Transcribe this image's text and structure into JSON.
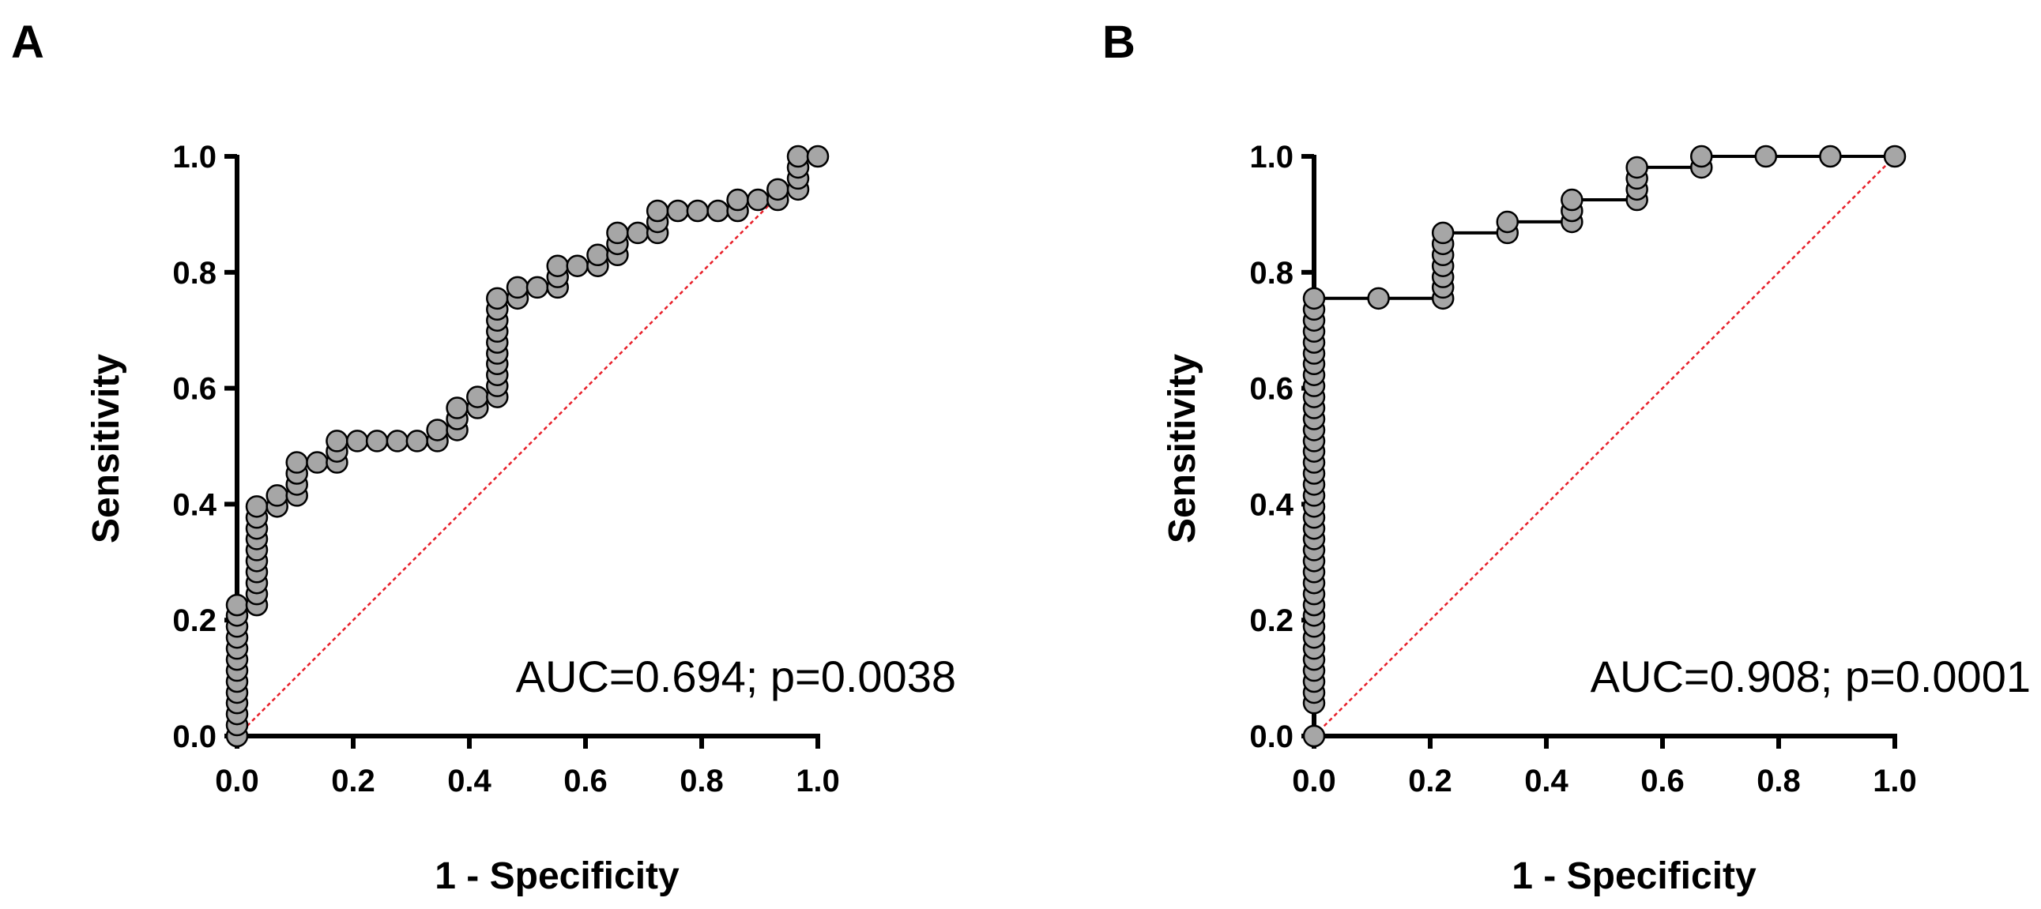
{
  "figure": {
    "background": "#ffffff",
    "marker_fill": "#a6a6a6",
    "marker_stroke": "#000000",
    "diagonal_color": "#e8202a"
  },
  "chart_data": [
    {
      "panel": "A",
      "type": "scatter",
      "title": "",
      "xlabel": "1 - Specificity",
      "ylabel": "Sensitivity",
      "xlim": [
        0,
        1
      ],
      "ylim": [
        0,
        1
      ],
      "xticks": [
        "0.0",
        "0.2",
        "0.4",
        "0.6",
        "0.8",
        "1.0"
      ],
      "yticks": [
        "0.0",
        "0.2",
        "0.4",
        "0.6",
        "0.8",
        "1.0"
      ],
      "annotation": "AUC=0.694; p=0.0038",
      "reference_line": true,
      "connect_points": false,
      "points": [
        [
          0,
          0
        ],
        [
          0,
          0.019
        ],
        [
          0,
          0.038
        ],
        [
          0,
          0.057
        ],
        [
          0,
          0.075
        ],
        [
          0,
          0.094
        ],
        [
          0,
          0.113
        ],
        [
          0,
          0.132
        ],
        [
          0,
          0.151
        ],
        [
          0,
          0.17
        ],
        [
          0,
          0.189
        ],
        [
          0,
          0.208
        ],
        [
          0,
          0.226
        ],
        [
          0.034,
          0.226
        ],
        [
          0.034,
          0.245
        ],
        [
          0.034,
          0.264
        ],
        [
          0.034,
          0.283
        ],
        [
          0.034,
          0.302
        ],
        [
          0.034,
          0.321
        ],
        [
          0.034,
          0.34
        ],
        [
          0.034,
          0.358
        ],
        [
          0.034,
          0.377
        ],
        [
          0.034,
          0.396
        ],
        [
          0.069,
          0.396
        ],
        [
          0.069,
          0.415
        ],
        [
          0.103,
          0.415
        ],
        [
          0.103,
          0.434
        ],
        [
          0.103,
          0.453
        ],
        [
          0.103,
          0.472
        ],
        [
          0.138,
          0.472
        ],
        [
          0.172,
          0.472
        ],
        [
          0.172,
          0.491
        ],
        [
          0.172,
          0.509
        ],
        [
          0.207,
          0.509
        ],
        [
          0.241,
          0.509
        ],
        [
          0.276,
          0.509
        ],
        [
          0.31,
          0.509
        ],
        [
          0.345,
          0.509
        ],
        [
          0.345,
          0.528
        ],
        [
          0.379,
          0.528
        ],
        [
          0.379,
          0.547
        ],
        [
          0.379,
          0.566
        ],
        [
          0.414,
          0.566
        ],
        [
          0.414,
          0.585
        ],
        [
          0.448,
          0.585
        ],
        [
          0.448,
          0.604
        ],
        [
          0.448,
          0.623
        ],
        [
          0.448,
          0.642
        ],
        [
          0.448,
          0.66
        ],
        [
          0.448,
          0.679
        ],
        [
          0.448,
          0.698
        ],
        [
          0.448,
          0.717
        ],
        [
          0.448,
          0.736
        ],
        [
          0.448,
          0.755
        ],
        [
          0.483,
          0.755
        ],
        [
          0.483,
          0.774
        ],
        [
          0.517,
          0.774
        ],
        [
          0.552,
          0.774
        ],
        [
          0.552,
          0.792
        ],
        [
          0.552,
          0.811
        ],
        [
          0.586,
          0.811
        ],
        [
          0.621,
          0.811
        ],
        [
          0.621,
          0.83
        ],
        [
          0.655,
          0.83
        ],
        [
          0.655,
          0.849
        ],
        [
          0.655,
          0.868
        ],
        [
          0.69,
          0.868
        ],
        [
          0.724,
          0.868
        ],
        [
          0.724,
          0.887
        ],
        [
          0.724,
          0.906
        ],
        [
          0.759,
          0.906
        ],
        [
          0.793,
          0.906
        ],
        [
          0.828,
          0.906
        ],
        [
          0.862,
          0.906
        ],
        [
          0.862,
          0.925
        ],
        [
          0.897,
          0.925
        ],
        [
          0.931,
          0.925
        ],
        [
          0.931,
          0.943
        ],
        [
          0.966,
          0.943
        ],
        [
          0.966,
          0.962
        ],
        [
          0.966,
          0.981
        ],
        [
          0.966,
          1.0
        ],
        [
          1.0,
          1.0
        ]
      ]
    },
    {
      "panel": "B",
      "type": "line",
      "title": "",
      "xlabel": "1 - Specificity",
      "ylabel": "Sensitivity",
      "xlim": [
        0,
        1
      ],
      "ylim": [
        0,
        1
      ],
      "xticks": [
        "0.0",
        "0.2",
        "0.4",
        "0.6",
        "0.8",
        "1.0"
      ],
      "yticks": [
        "0.0",
        "0.2",
        "0.4",
        "0.6",
        "0.8",
        "1.0"
      ],
      "annotation": "AUC=0.908; p=0.0001",
      "reference_line": true,
      "connect_points": true,
      "points": [
        [
          0,
          0
        ],
        [
          0,
          0.057
        ],
        [
          0,
          0.075
        ],
        [
          0,
          0.094
        ],
        [
          0,
          0.113
        ],
        [
          0,
          0.132
        ],
        [
          0,
          0.151
        ],
        [
          0,
          0.17
        ],
        [
          0,
          0.189
        ],
        [
          0,
          0.208
        ],
        [
          0,
          0.226
        ],
        [
          0,
          0.245
        ],
        [
          0,
          0.264
        ],
        [
          0,
          0.283
        ],
        [
          0,
          0.302
        ],
        [
          0,
          0.321
        ],
        [
          0,
          0.34
        ],
        [
          0,
          0.358
        ],
        [
          0,
          0.377
        ],
        [
          0,
          0.396
        ],
        [
          0,
          0.415
        ],
        [
          0,
          0.434
        ],
        [
          0,
          0.453
        ],
        [
          0,
          0.472
        ],
        [
          0,
          0.491
        ],
        [
          0,
          0.509
        ],
        [
          0,
          0.528
        ],
        [
          0,
          0.547
        ],
        [
          0,
          0.566
        ],
        [
          0,
          0.585
        ],
        [
          0,
          0.604
        ],
        [
          0,
          0.623
        ],
        [
          0,
          0.642
        ],
        [
          0,
          0.66
        ],
        [
          0,
          0.679
        ],
        [
          0,
          0.698
        ],
        [
          0,
          0.717
        ],
        [
          0,
          0.736
        ],
        [
          0,
          0.755
        ],
        [
          0.111,
          0.755
        ],
        [
          0.222,
          0.755
        ],
        [
          0.222,
          0.774
        ],
        [
          0.222,
          0.792
        ],
        [
          0.222,
          0.811
        ],
        [
          0.222,
          0.83
        ],
        [
          0.222,
          0.849
        ],
        [
          0.222,
          0.868
        ],
        [
          0.333,
          0.868
        ],
        [
          0.333,
          0.887
        ],
        [
          0.444,
          0.887
        ],
        [
          0.444,
          0.906
        ],
        [
          0.444,
          0.925
        ],
        [
          0.556,
          0.925
        ],
        [
          0.556,
          0.943
        ],
        [
          0.556,
          0.962
        ],
        [
          0.556,
          0.981
        ],
        [
          0.667,
          0.981
        ],
        [
          0.667,
          1.0
        ],
        [
          0.778,
          1.0
        ],
        [
          0.889,
          1.0
        ],
        [
          1.0,
          1.0
        ]
      ]
    }
  ]
}
